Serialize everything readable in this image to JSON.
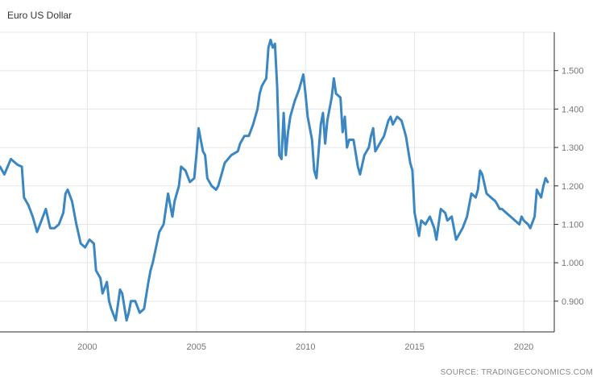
{
  "title": "Euro US Dollar",
  "source": "SOURCE: TRADINGECONOMICS.COM",
  "colors": {
    "line": "#3a87c3",
    "grid": "#e6e6e6",
    "axis": "#2b2b2b",
    "text": "#777777"
  },
  "chart_data": {
    "type": "line",
    "title": "Euro US Dollar",
    "xlabel": "",
    "ylabel": "",
    "x_ticks": [
      "2000",
      "2005",
      "2010",
      "2015",
      "2020"
    ],
    "y_ticks": [
      "0.900",
      "1.000",
      "1.100",
      "1.200",
      "1.300",
      "1.400",
      "1.500"
    ],
    "xlim": [
      1996.0,
      2021.4
    ],
    "ylim": [
      0.82,
      1.6
    ],
    "grid": true,
    "y_axis_position": "right",
    "series": [
      {
        "values": [
          [
            1996.0,
            1.25
          ],
          [
            1996.2,
            1.23
          ],
          [
            1996.5,
            1.27
          ],
          [
            1996.8,
            1.255
          ],
          [
            1997.0,
            1.25
          ],
          [
            1997.1,
            1.17
          ],
          [
            1997.3,
            1.15
          ],
          [
            1997.5,
            1.12
          ],
          [
            1997.7,
            1.08
          ],
          [
            1997.9,
            1.11
          ],
          [
            1998.1,
            1.14
          ],
          [
            1998.3,
            1.09
          ],
          [
            1998.5,
            1.09
          ],
          [
            1998.7,
            1.1
          ],
          [
            1998.9,
            1.13
          ],
          [
            1999.0,
            1.18
          ],
          [
            1999.1,
            1.19
          ],
          [
            1999.3,
            1.16
          ],
          [
            1999.5,
            1.1
          ],
          [
            1999.7,
            1.05
          ],
          [
            1999.9,
            1.04
          ],
          [
            2000.1,
            1.06
          ],
          [
            2000.3,
            1.05
          ],
          [
            2000.4,
            0.98
          ],
          [
            2000.6,
            0.96
          ],
          [
            2000.7,
            0.92
          ],
          [
            2000.9,
            0.95
          ],
          [
            2001.0,
            0.9
          ],
          [
            2001.1,
            0.88
          ],
          [
            2001.3,
            0.85
          ],
          [
            2001.5,
            0.93
          ],
          [
            2001.6,
            0.92
          ],
          [
            2001.8,
            0.85
          ],
          [
            2001.9,
            0.87
          ],
          [
            2002.0,
            0.9
          ],
          [
            2002.2,
            0.9
          ],
          [
            2002.4,
            0.87
          ],
          [
            2002.6,
            0.88
          ],
          [
            2002.8,
            0.95
          ],
          [
            2002.9,
            0.98
          ],
          [
            2003.0,
            1.0
          ],
          [
            2003.3,
            1.08
          ],
          [
            2003.5,
            1.1
          ],
          [
            2003.7,
            1.18
          ],
          [
            2003.9,
            1.12
          ],
          [
            2004.0,
            1.16
          ],
          [
            2004.2,
            1.2
          ],
          [
            2004.3,
            1.25
          ],
          [
            2004.5,
            1.24
          ],
          [
            2004.7,
            1.21
          ],
          [
            2004.9,
            1.22
          ],
          [
            2005.0,
            1.28
          ],
          [
            2005.1,
            1.35
          ],
          [
            2005.2,
            1.32
          ],
          [
            2005.3,
            1.29
          ],
          [
            2005.4,
            1.28
          ],
          [
            2005.5,
            1.22
          ],
          [
            2005.7,
            1.2
          ],
          [
            2005.9,
            1.19
          ],
          [
            2006.0,
            1.2
          ],
          [
            2006.3,
            1.26
          ],
          [
            2006.6,
            1.28
          ],
          [
            2006.9,
            1.29
          ],
          [
            2007.0,
            1.31
          ],
          [
            2007.2,
            1.33
          ],
          [
            2007.4,
            1.33
          ],
          [
            2007.6,
            1.36
          ],
          [
            2007.8,
            1.4
          ],
          [
            2007.9,
            1.44
          ],
          [
            2008.0,
            1.46
          ],
          [
            2008.2,
            1.48
          ],
          [
            2008.3,
            1.56
          ],
          [
            2008.4,
            1.58
          ],
          [
            2008.5,
            1.56
          ],
          [
            2008.6,
            1.57
          ],
          [
            2008.7,
            1.46
          ],
          [
            2008.8,
            1.28
          ],
          [
            2008.9,
            1.27
          ],
          [
            2009.0,
            1.39
          ],
          [
            2009.1,
            1.28
          ],
          [
            2009.2,
            1.34
          ],
          [
            2009.3,
            1.38
          ],
          [
            2009.5,
            1.42
          ],
          [
            2009.7,
            1.45
          ],
          [
            2009.9,
            1.49
          ],
          [
            2010.0,
            1.44
          ],
          [
            2010.1,
            1.38
          ],
          [
            2010.3,
            1.32
          ],
          [
            2010.4,
            1.24
          ],
          [
            2010.5,
            1.22
          ],
          [
            2010.6,
            1.29
          ],
          [
            2010.7,
            1.36
          ],
          [
            2010.8,
            1.39
          ],
          [
            2010.9,
            1.31
          ],
          [
            2011.0,
            1.37
          ],
          [
            2011.2,
            1.43
          ],
          [
            2011.3,
            1.48
          ],
          [
            2011.4,
            1.44
          ],
          [
            2011.6,
            1.43
          ],
          [
            2011.7,
            1.34
          ],
          [
            2011.8,
            1.38
          ],
          [
            2011.9,
            1.3
          ],
          [
            2012.0,
            1.32
          ],
          [
            2012.2,
            1.32
          ],
          [
            2012.4,
            1.25
          ],
          [
            2012.5,
            1.23
          ],
          [
            2012.7,
            1.28
          ],
          [
            2012.9,
            1.3
          ],
          [
            2013.0,
            1.33
          ],
          [
            2013.1,
            1.35
          ],
          [
            2013.2,
            1.29
          ],
          [
            2013.4,
            1.31
          ],
          [
            2013.6,
            1.33
          ],
          [
            2013.8,
            1.37
          ],
          [
            2013.9,
            1.38
          ],
          [
            2014.0,
            1.36
          ],
          [
            2014.2,
            1.38
          ],
          [
            2014.4,
            1.37
          ],
          [
            2014.6,
            1.33
          ],
          [
            2014.8,
            1.26
          ],
          [
            2014.9,
            1.24
          ],
          [
            2015.0,
            1.13
          ],
          [
            2015.1,
            1.1
          ],
          [
            2015.2,
            1.07
          ],
          [
            2015.3,
            1.11
          ],
          [
            2015.5,
            1.1
          ],
          [
            2015.7,
            1.12
          ],
          [
            2015.9,
            1.09
          ],
          [
            2016.0,
            1.06
          ],
          [
            2016.2,
            1.14
          ],
          [
            2016.4,
            1.13
          ],
          [
            2016.5,
            1.11
          ],
          [
            2016.7,
            1.12
          ],
          [
            2016.9,
            1.06
          ],
          [
            2017.0,
            1.07
          ],
          [
            2017.2,
            1.09
          ],
          [
            2017.4,
            1.12
          ],
          [
            2017.6,
            1.18
          ],
          [
            2017.8,
            1.17
          ],
          [
            2017.9,
            1.19
          ],
          [
            2018.0,
            1.24
          ],
          [
            2018.1,
            1.23
          ],
          [
            2018.3,
            1.18
          ],
          [
            2018.5,
            1.17
          ],
          [
            2018.7,
            1.16
          ],
          [
            2018.9,
            1.14
          ],
          [
            2019.0,
            1.14
          ],
          [
            2019.2,
            1.13
          ],
          [
            2019.4,
            1.12
          ],
          [
            2019.6,
            1.11
          ],
          [
            2019.8,
            1.1
          ],
          [
            2019.9,
            1.12
          ],
          [
            2020.0,
            1.11
          ],
          [
            2020.2,
            1.1
          ],
          [
            2020.3,
            1.09
          ],
          [
            2020.5,
            1.12
          ],
          [
            2020.6,
            1.19
          ],
          [
            2020.7,
            1.18
          ],
          [
            2020.8,
            1.17
          ],
          [
            2020.9,
            1.2
          ],
          [
            2021.0,
            1.22
          ],
          [
            2021.1,
            1.21
          ]
        ]
      }
    ]
  }
}
